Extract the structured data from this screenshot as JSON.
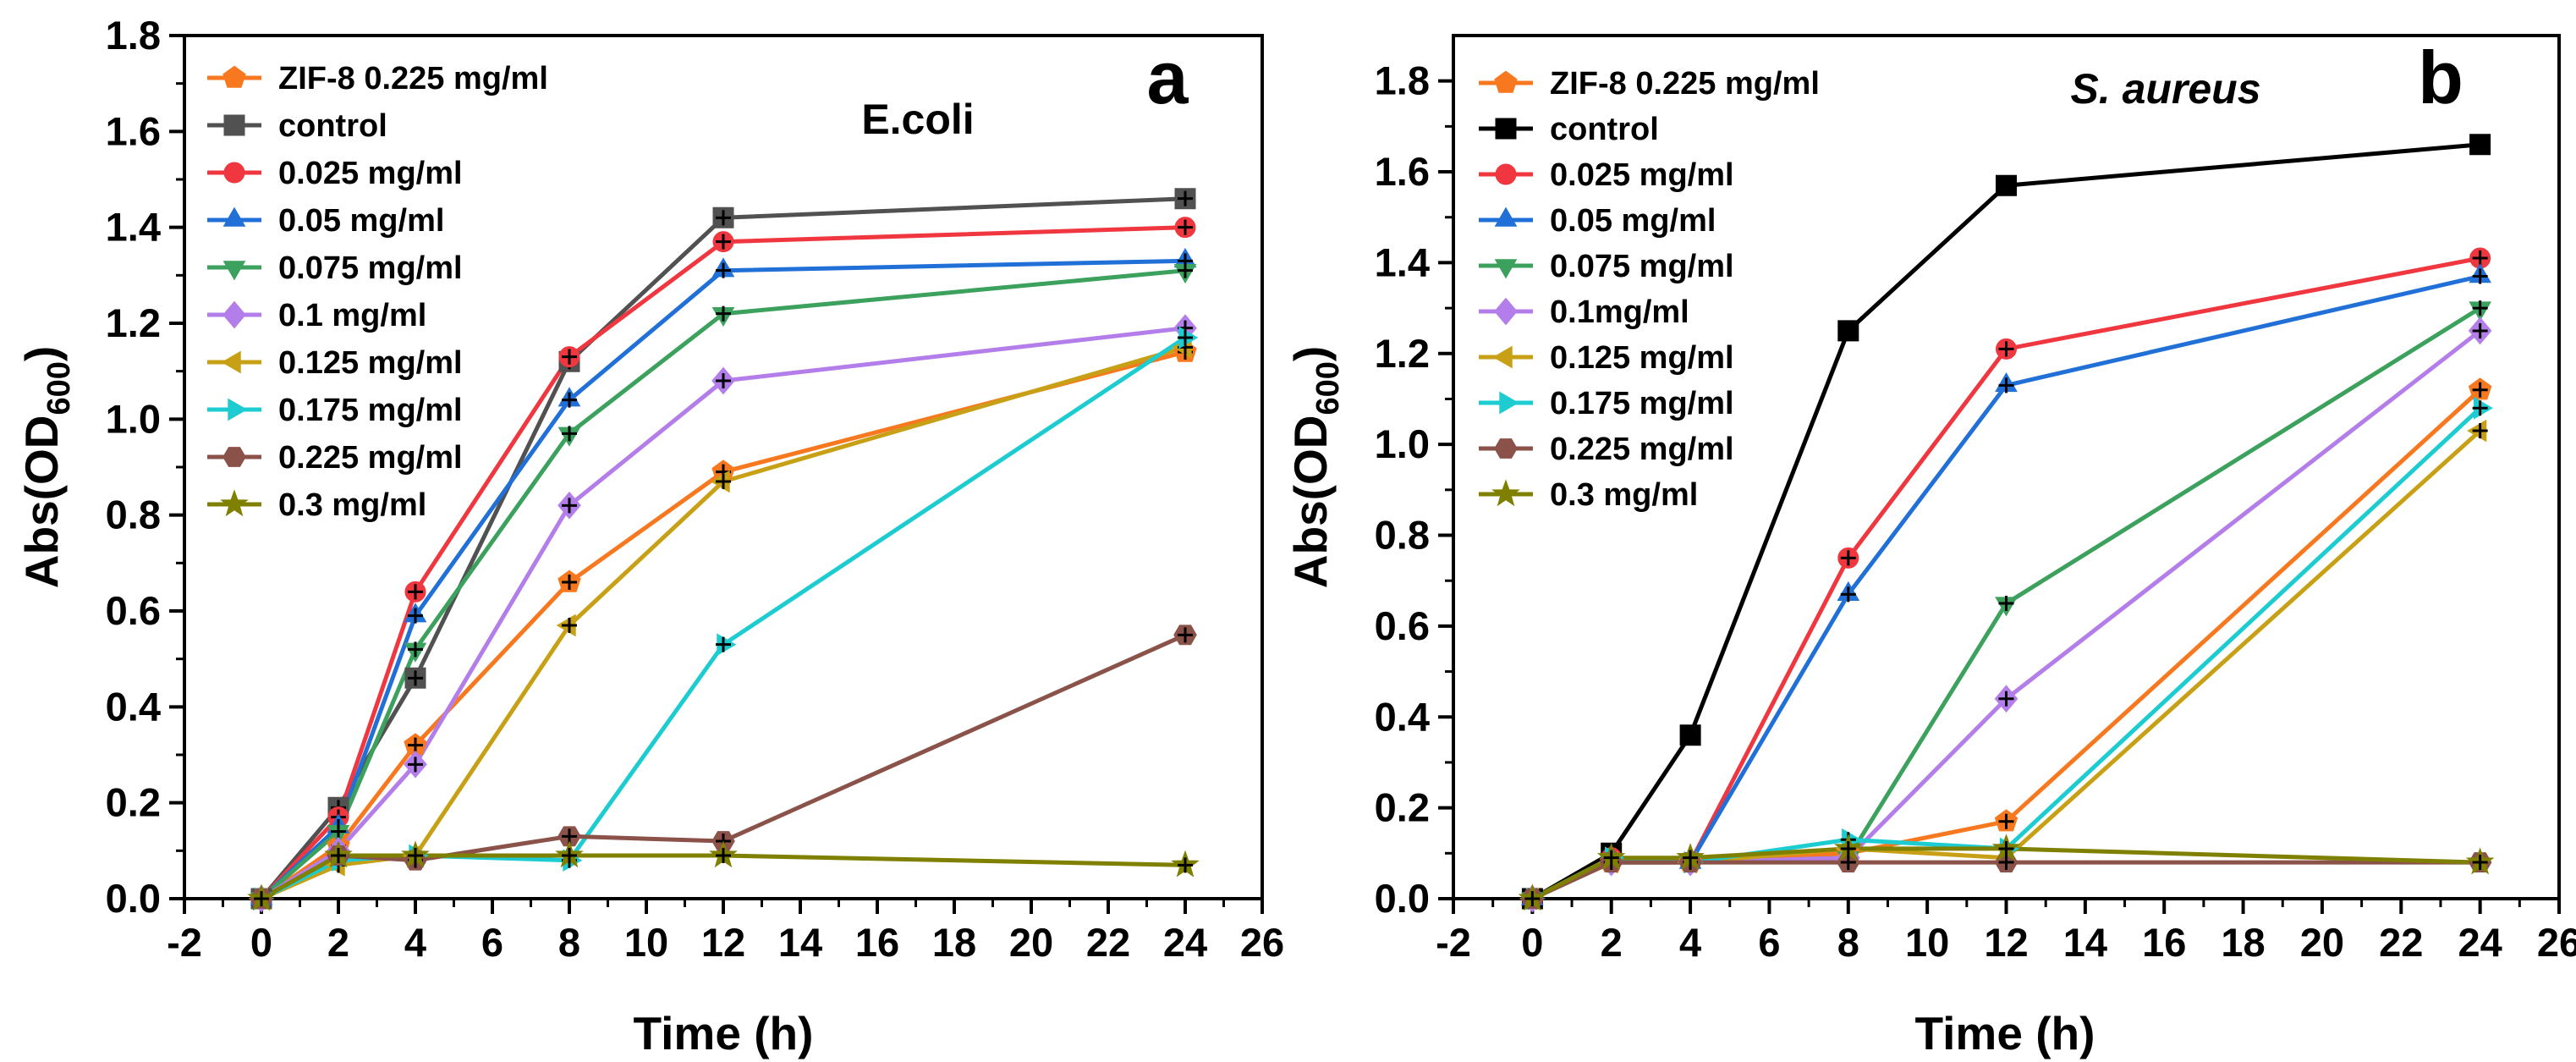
{
  "chart_data": [
    {
      "panel": "a",
      "type": "line",
      "title": "E.coli",
      "title_italic": false,
      "panel_letter": "a",
      "xlabel": "Time (h)",
      "ylabel_main": "Abs(OD",
      "ylabel_sub": "600",
      "ylabel_close": ")",
      "xlim": [
        -2,
        26
      ],
      "ylim": [
        0,
        1.8
      ],
      "xticks": [
        -2,
        0,
        2,
        4,
        6,
        8,
        10,
        12,
        14,
        16,
        18,
        20,
        22,
        24,
        26
      ],
      "xtick_labels": [
        "-2",
        "0",
        "2",
        "4",
        "6",
        "8",
        "10",
        "12",
        "14",
        "16",
        "18",
        "20",
        "22",
        "24",
        "26"
      ],
      "yticks": [
        0,
        0.2,
        0.4,
        0.6,
        0.8,
        1.0,
        1.2,
        1.4,
        1.6,
        1.8
      ],
      "ytick_labels": [
        "0.0",
        "0.2",
        "0.4",
        "0.6",
        "0.8",
        "1.0",
        "1.2",
        "1.4",
        "1.6",
        "1.8"
      ],
      "x": [
        0,
        2,
        4,
        8,
        12,
        24
      ],
      "legend_position": "top-left",
      "series": [
        {
          "name": "ZIF-8 0.225 mg/ml",
          "color": "#F8781F",
          "marker": "pentagon",
          "values": [
            0.0,
            0.11,
            0.32,
            0.66,
            0.89,
            1.14
          ]
        },
        {
          "name": "control",
          "color": "#515151",
          "marker": "square",
          "values": [
            0.0,
            0.19,
            0.46,
            1.12,
            1.42,
            1.46
          ]
        },
        {
          "name": "0.025 mg/ml",
          "color": "#F0373F",
          "marker": "circle",
          "values": [
            0.0,
            0.17,
            0.64,
            1.13,
            1.37,
            1.4
          ]
        },
        {
          "name": "0.05 mg/ml",
          "color": "#2170D8",
          "marker": "triangle-up",
          "values": [
            0.0,
            0.15,
            0.59,
            1.04,
            1.31,
            1.33
          ]
        },
        {
          "name": "0.075 mg/ml",
          "color": "#3BA15D",
          "marker": "triangle-down",
          "values": [
            0.0,
            0.14,
            0.52,
            0.97,
            1.22,
            1.31
          ]
        },
        {
          "name": "0.1 mg/ml",
          "color": "#B47EEA",
          "marker": "diamond",
          "values": [
            0.0,
            0.1,
            0.28,
            0.82,
            1.08,
            1.19
          ]
        },
        {
          "name": "0.125 mg/ml",
          "color": "#C8A016",
          "marker": "triangle-left",
          "values": [
            0.0,
            0.07,
            0.09,
            0.57,
            0.87,
            1.15
          ]
        },
        {
          "name": "0.175 mg/ml",
          "color": "#1CCCD0",
          "marker": "triangle-right",
          "values": [
            0.0,
            0.08,
            0.09,
            0.08,
            0.53,
            1.17
          ]
        },
        {
          "name": "0.225 mg/ml",
          "color": "#8B5249",
          "marker": "hexagon",
          "values": [
            0.0,
            0.09,
            0.08,
            0.13,
            0.12,
            0.55
          ]
        },
        {
          "name": "0.3 mg/ml",
          "color": "#808000",
          "marker": "star",
          "values": [
            0.0,
            0.09,
            0.09,
            0.09,
            0.09,
            0.07
          ]
        }
      ]
    },
    {
      "panel": "b",
      "type": "line",
      "title": "S. aureus",
      "title_italic": true,
      "panel_letter": "b",
      "xlabel": "Time (h)",
      "ylabel_main": "Abs(OD",
      "ylabel_sub": "600",
      "ylabel_close": ")",
      "xlim": [
        -2,
        26
      ],
      "ylim": [
        0,
        1.9
      ],
      "xticks": [
        -2,
        0,
        2,
        4,
        6,
        8,
        10,
        12,
        14,
        16,
        18,
        20,
        22,
        24,
        26
      ],
      "xtick_labels": [
        "-2",
        "0",
        "2",
        "4",
        "6",
        "8",
        "10",
        "12",
        "14",
        "16",
        "18",
        "20",
        "22",
        "24",
        "26"
      ],
      "yticks": [
        0,
        0.2,
        0.4,
        0.6,
        0.8,
        1.0,
        1.2,
        1.4,
        1.6,
        1.8
      ],
      "ytick_labels": [
        "0.0",
        "0.2",
        "0.4",
        "0.6",
        "0.8",
        "1.0",
        "1.2",
        "1.4",
        "1.6",
        "1.8"
      ],
      "x": [
        0,
        2,
        4,
        8,
        12,
        24
      ],
      "legend_position": "top-left",
      "series": [
        {
          "name": "ZIF-8 0.225 mg/ml",
          "color": "#F8781F",
          "marker": "pentagon",
          "values": [
            0.0,
            0.08,
            0.08,
            0.1,
            0.17,
            1.12
          ]
        },
        {
          "name": " control",
          "color": "#000000",
          "marker": "square",
          "values": [
            0.0,
            0.1,
            0.36,
            1.25,
            1.57,
            1.66
          ]
        },
        {
          "name": "0.025 mg/ml",
          "color": "#F0373F",
          "marker": "circle",
          "values": [
            0.0,
            0.09,
            0.08,
            0.75,
            1.21,
            1.41
          ]
        },
        {
          "name": "0.05 mg/ml",
          "color": "#2170D8",
          "marker": "triangle-up",
          "values": [
            0.0,
            0.09,
            0.08,
            0.67,
            1.13,
            1.37
          ]
        },
        {
          "name": "0.075 mg/ml",
          "color": "#3BA15D",
          "marker": "triangle-down",
          "values": [
            0.0,
            0.08,
            0.08,
            0.09,
            0.65,
            1.3
          ]
        },
        {
          "name": "0.1mg/ml",
          "color": "#B47EEA",
          "marker": "diamond",
          "values": [
            0.0,
            0.08,
            0.08,
            0.09,
            0.44,
            1.25
          ]
        },
        {
          "name": "0.125 mg/ml",
          "color": "#C8A016",
          "marker": "triangle-left",
          "values": [
            0.0,
            0.08,
            0.08,
            0.11,
            0.09,
            1.03
          ]
        },
        {
          "name": "0.175 mg/ml",
          "color": "#1CCCD0",
          "marker": "triangle-right",
          "values": [
            0.0,
            0.09,
            0.08,
            0.13,
            0.11,
            1.08
          ]
        },
        {
          "name": "0.225 mg/ml",
          "color": "#8B5249",
          "marker": "hexagon",
          "values": [
            0.0,
            0.08,
            0.08,
            0.08,
            0.08,
            0.08
          ]
        },
        {
          "name": "0.3 mg/ml",
          "color": "#808000",
          "marker": "star",
          "values": [
            0.0,
            0.09,
            0.09,
            0.11,
            0.11,
            0.08
          ]
        }
      ]
    }
  ]
}
